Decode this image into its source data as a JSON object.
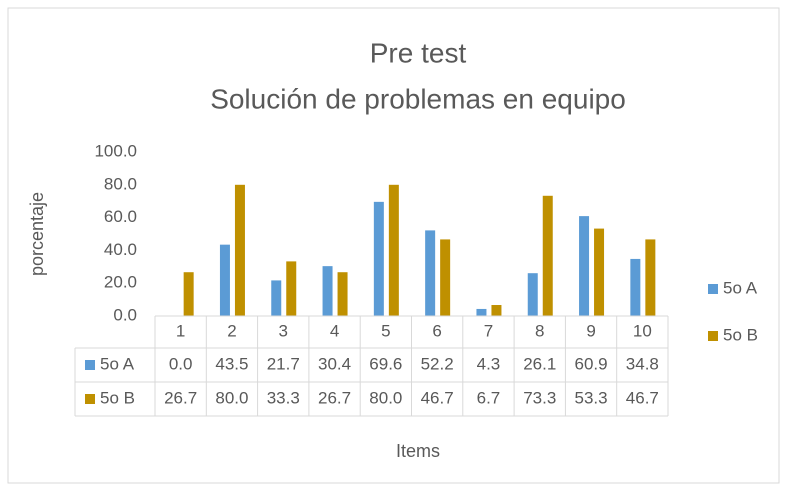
{
  "chart_data": {
    "type": "bar",
    "title": "Pre test",
    "subtitle": "Solución de problemas en equipo",
    "x_label": "Items",
    "y_label": "porcentaje",
    "categories": [
      "1",
      "2",
      "3",
      "4",
      "5",
      "6",
      "7",
      "8",
      "9",
      "10"
    ],
    "series": [
      {
        "name": "5o A",
        "color": "#5b9bd5",
        "values": [
          0.0,
          43.5,
          21.7,
          30.4,
          69.6,
          52.2,
          4.3,
          26.1,
          60.9,
          34.8
        ],
        "value_labels": [
          "0.0",
          "43.5",
          "21.7",
          "30.4",
          "69.6",
          "52.2",
          "4.3",
          "26.1",
          "60.9",
          "34.8"
        ]
      },
      {
        "name": "5o B",
        "color": "#bf9000",
        "values": [
          26.7,
          80.0,
          33.3,
          26.7,
          80.0,
          46.7,
          6.7,
          73.3,
          53.3,
          46.7
        ],
        "value_labels": [
          "26.7",
          "80.0",
          "33.3",
          "26.7",
          "80.0",
          "46.7",
          "6.7",
          "73.3",
          "53.3",
          "46.7"
        ]
      }
    ],
    "ylim": [
      0,
      100
    ],
    "yticks": [
      {
        "value": 0,
        "label": "0.0"
      },
      {
        "value": 20,
        "label": "20.0"
      },
      {
        "value": 40,
        "label": "40.0"
      },
      {
        "value": 60,
        "label": "60.0"
      },
      {
        "value": 80,
        "label": "80.0"
      },
      {
        "value": 100,
        "label": "100.0"
      }
    ],
    "legend": "right",
    "data_table": true
  }
}
